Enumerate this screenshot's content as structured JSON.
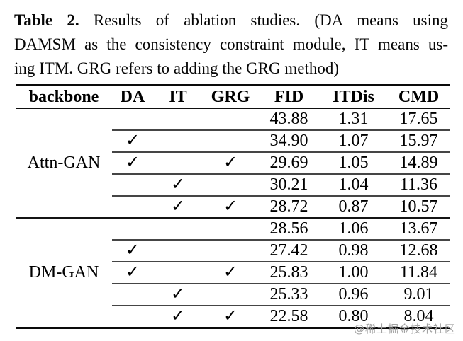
{
  "caption": {
    "label": "Table 2.",
    "line1_rest": "Results of ablation studies.  (DA means using",
    "line2": "DAMSM as the consistency constraint module, IT means us-",
    "line3": "ing ITM. GRG refers to adding the GRG method)"
  },
  "table": {
    "check_glyph": "✓",
    "headers": [
      "backbone",
      "DA",
      "IT",
      "GRG",
      "FID",
      "ITDis",
      "CMD"
    ],
    "groups": [
      {
        "backbone": "Attn-GAN",
        "rows": [
          {
            "checks": [
              false,
              false,
              false
            ],
            "values": [
              "43.88",
              "1.31",
              "17.65"
            ]
          },
          {
            "checks": [
              true,
              false,
              false
            ],
            "values": [
              "34.90",
              "1.07",
              "15.97"
            ]
          },
          {
            "checks": [
              true,
              false,
              true
            ],
            "values": [
              "29.69",
              "1.05",
              "14.89"
            ]
          },
          {
            "checks": [
              false,
              true,
              false
            ],
            "values": [
              "30.21",
              "1.04",
              "11.36"
            ]
          },
          {
            "checks": [
              false,
              true,
              true
            ],
            "values": [
              "28.72",
              "0.87",
              "10.57"
            ]
          }
        ]
      },
      {
        "backbone": "DM-GAN",
        "rows": [
          {
            "checks": [
              false,
              false,
              false
            ],
            "values": [
              "28.56",
              "1.06",
              "13.67"
            ]
          },
          {
            "checks": [
              true,
              false,
              false
            ],
            "values": [
              "27.42",
              "0.98",
              "12.68"
            ]
          },
          {
            "checks": [
              true,
              false,
              true
            ],
            "values": [
              "25.83",
              "1.00",
              "11.84"
            ]
          },
          {
            "checks": [
              false,
              true,
              false
            ],
            "values": [
              "25.33",
              "0.96",
              "9.01"
            ]
          },
          {
            "checks": [
              false,
              true,
              true
            ],
            "values": [
              "22.58",
              "0.80",
              "8.04"
            ]
          }
        ]
      }
    ]
  },
  "watermark": "@稀土掘金技术社区"
}
